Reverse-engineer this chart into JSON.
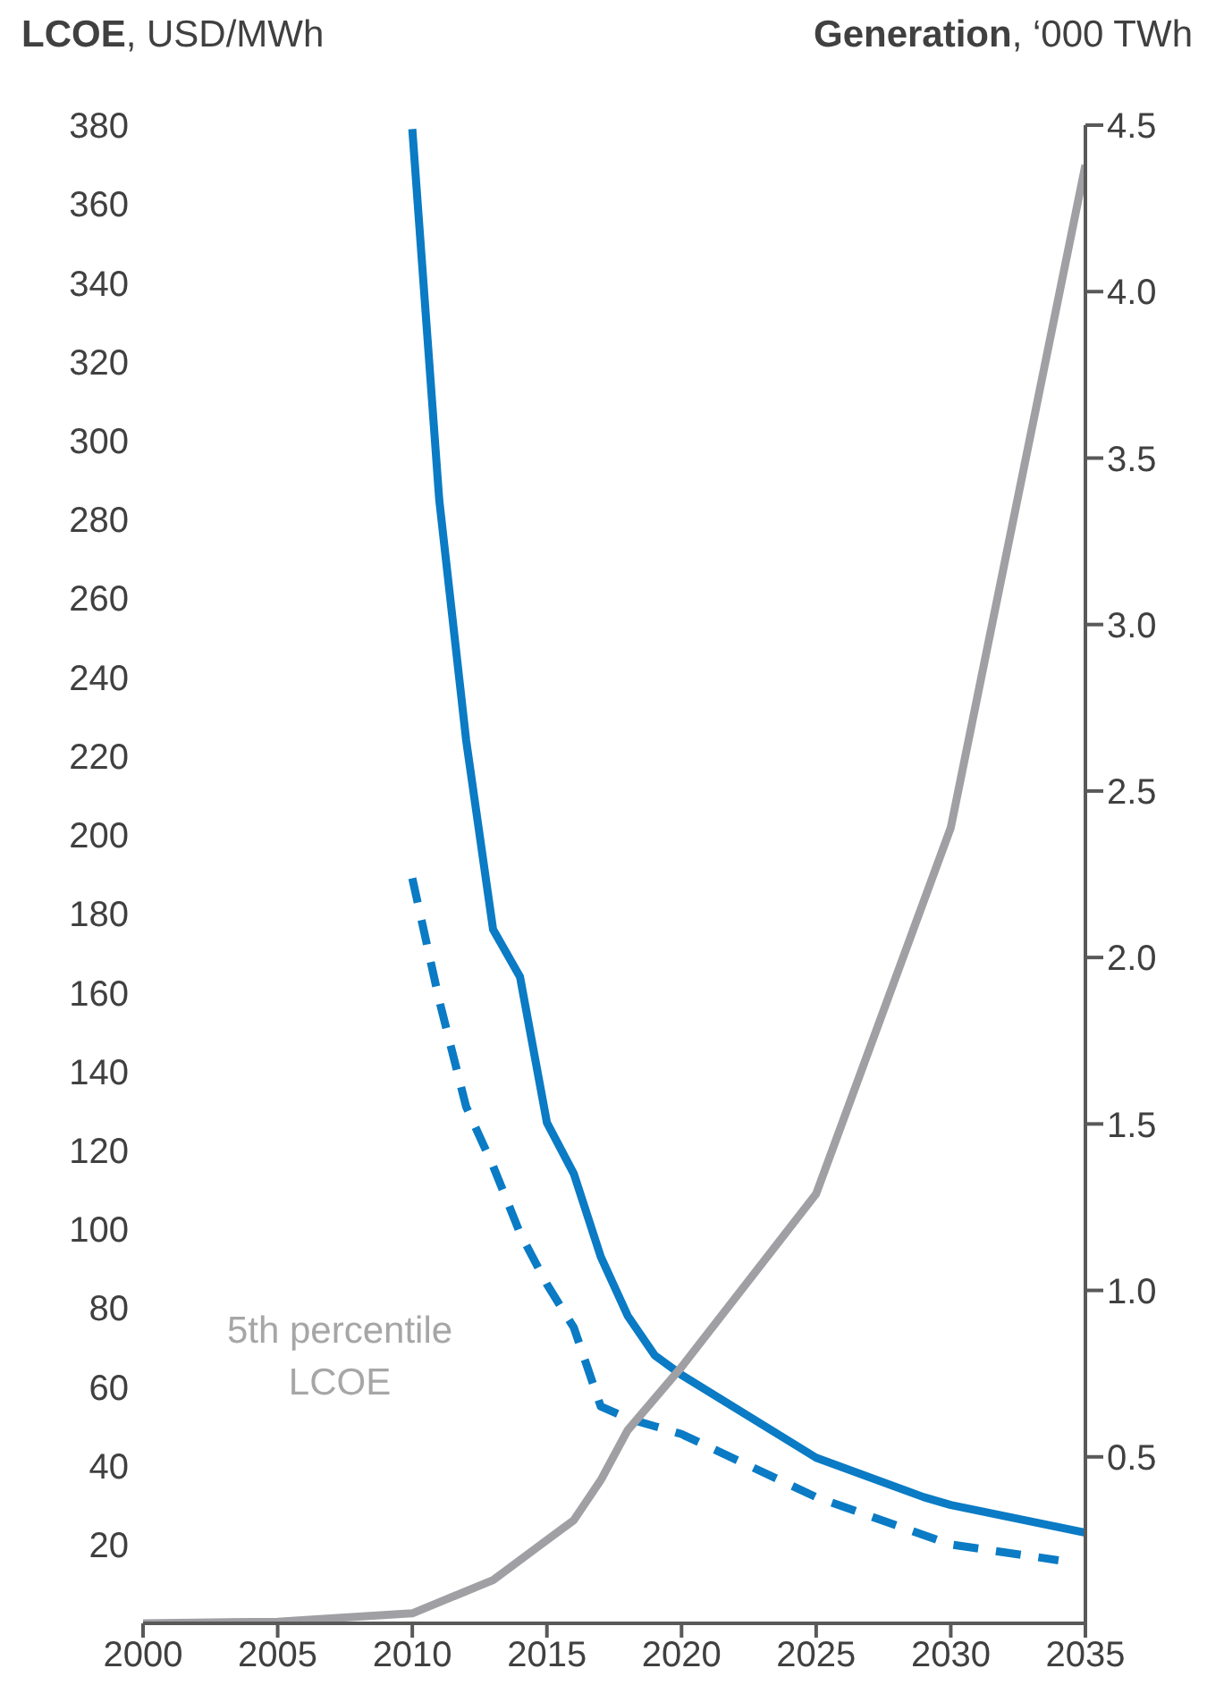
{
  "chart_data": {
    "type": "line",
    "ylabel": "LCOE, USD/MWh",
    "y2label": "Generation, ‘000 TWh",
    "xlim": [
      2000,
      2035
    ],
    "xticks": [
      2000,
      2005,
      2010,
      2015,
      2020,
      2025,
      2030,
      2035
    ],
    "ylim": [
      0,
      380
    ],
    "yticks": [
      20,
      40,
      60,
      80,
      100,
      120,
      140,
      160,
      180,
      200,
      220,
      240,
      260,
      280,
      300,
      320,
      340,
      360,
      380
    ],
    "y2lim": [
      0,
      4.5
    ],
    "y2ticks": [
      0.5,
      {
        "value": 1,
        "label": "1.0"
      },
      1.5,
      {
        "value": 2,
        "label": "2.0"
      },
      2.5,
      {
        "value": 3,
        "label": "3.0"
      },
      3.5,
      {
        "value": 4,
        "label": "4.0"
      },
      4.5
    ],
    "marker": "none",
    "series": [
      {
        "color": "#0a7bc4",
        "line_style": "solid",
        "x": [
          2010,
          2011,
          2012,
          2013,
          2014,
          2015,
          2016,
          2017,
          2018,
          2019,
          2020,
          2025,
          2029,
          2030,
          2035
        ],
        "values": [
          379,
          285,
          224,
          176,
          164,
          127,
          114,
          93,
          78,
          68,
          63,
          42,
          32,
          30,
          23
        ]
      },
      {
        "color": "#0a7bc4",
        "line_style": "dashed",
        "x": [
          2010,
          2011,
          2012,
          2013,
          2014,
          2015,
          2016,
          2017,
          2018,
          2019,
          2020,
          2025,
          2030,
          2034
        ],
        "values": [
          189,
          158,
          131,
          116,
          99,
          86,
          75,
          55,
          52,
          50,
          48,
          32,
          20,
          16
        ]
      },
      {
        "color": "#a0a0a4",
        "line_style": "solid",
        "axis": "y2",
        "x": [
          2000,
          2005,
          2008,
          2010,
          2013,
          2015,
          2016,
          2017,
          2018,
          2020,
          2025,
          2030,
          2035
        ],
        "values": [
          0,
          0.005,
          0.02,
          0.03,
          0.13,
          0.25,
          0.31,
          0.43,
          0.58,
          0.77,
          1.29,
          2.39,
          4.38
        ]
      }
    ],
    "annotations": [
      "5th percentile LCOE"
    ]
  }
}
